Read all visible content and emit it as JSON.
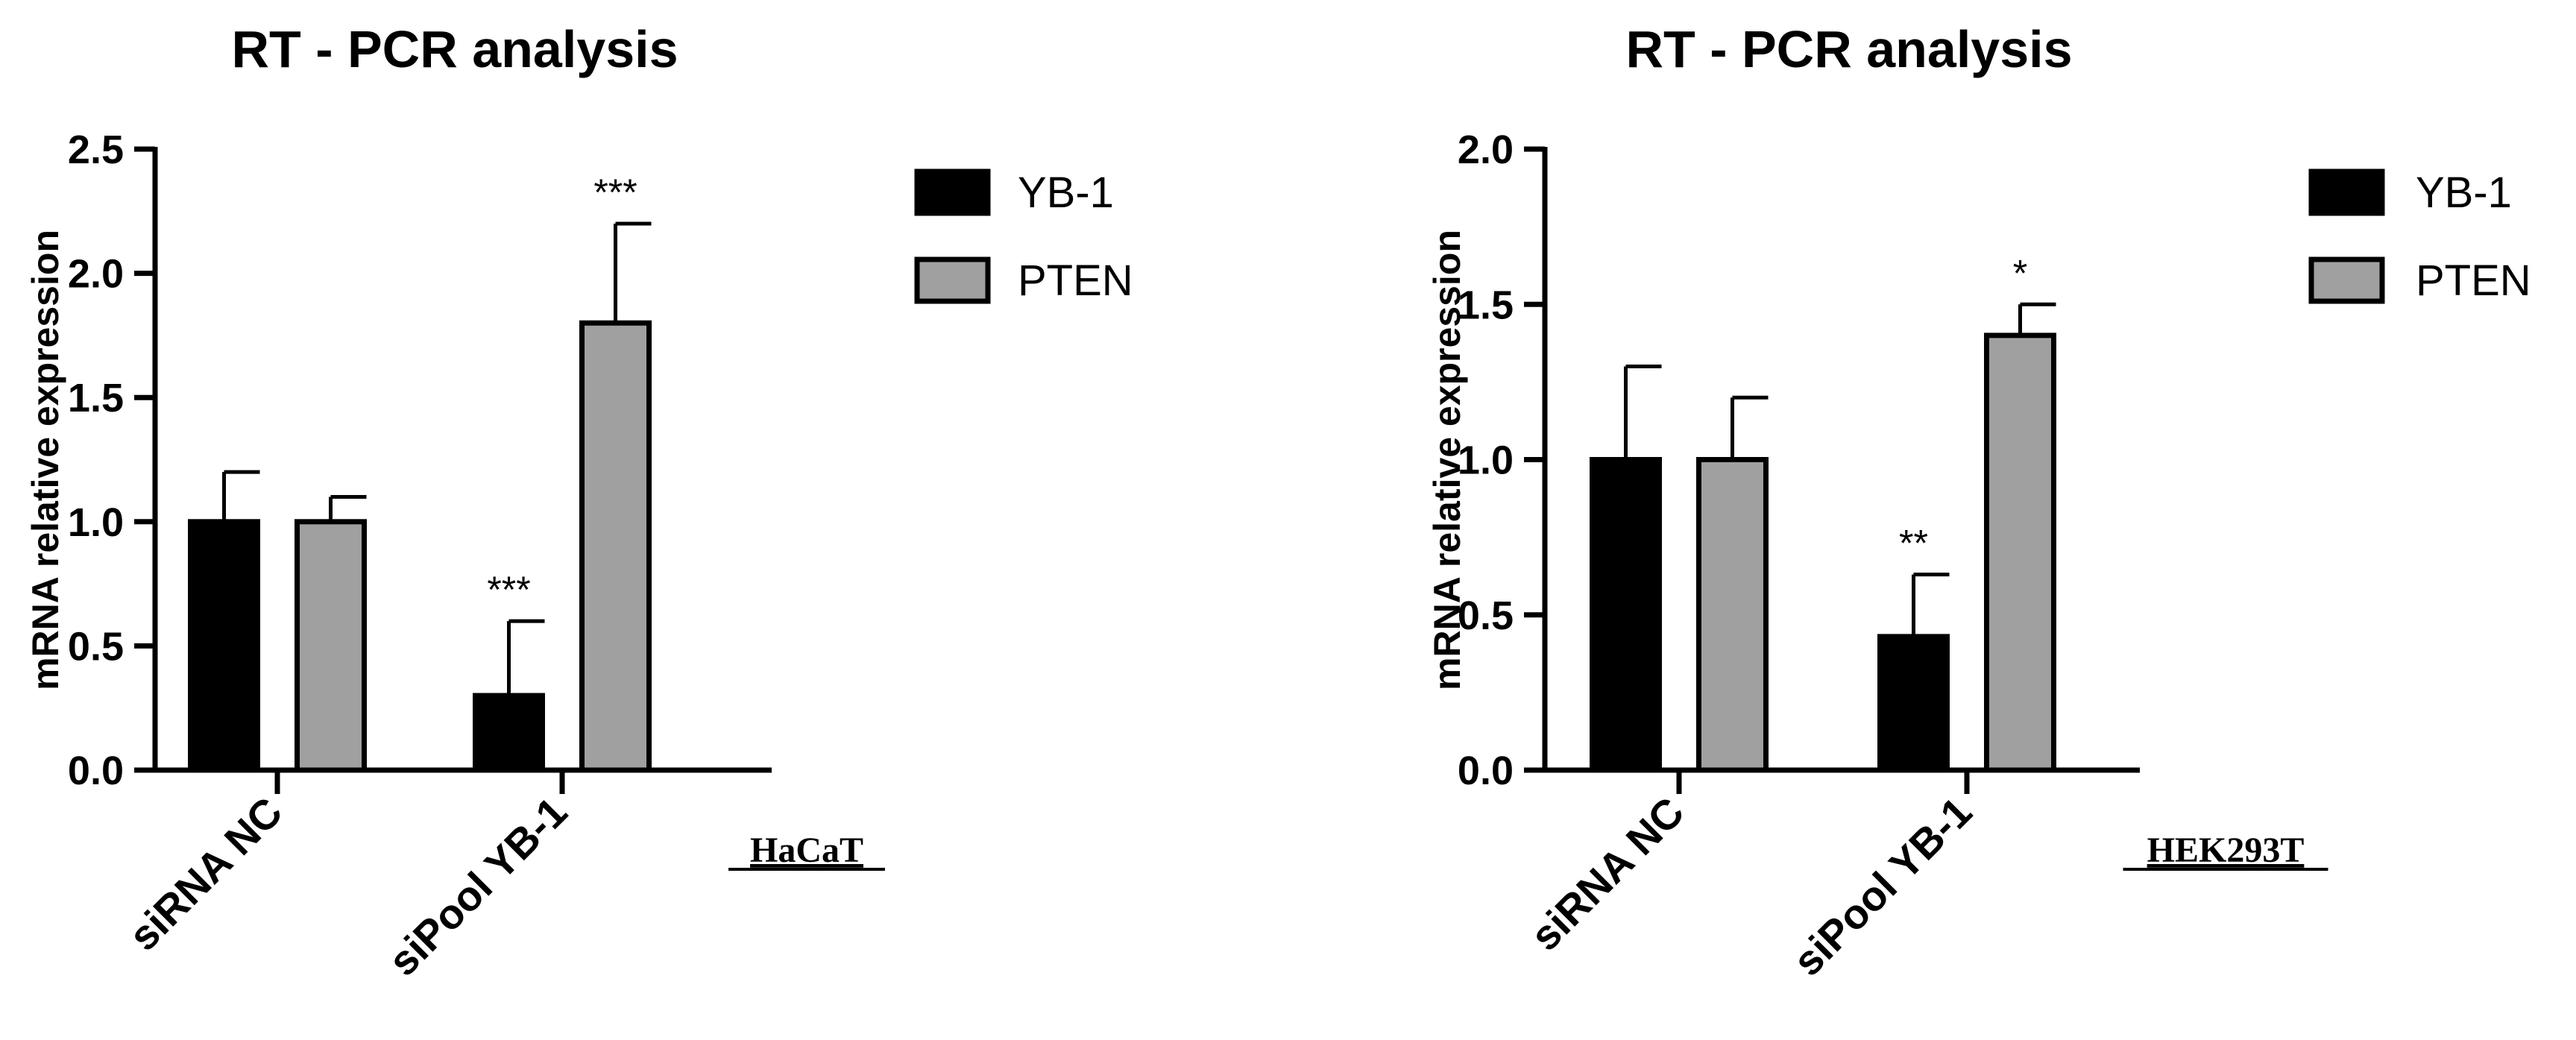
{
  "chart_data": [
    {
      "type": "bar",
      "title": "RT - PCR analysis",
      "ylabel": "mRNA relative expression",
      "xlabel": "",
      "ylim": [
        0,
        2.5
      ],
      "yticks": [
        "0.0",
        "0.5",
        "1.0",
        "1.5",
        "2.0",
        "2.5"
      ],
      "ytick_values": [
        0,
        0.5,
        1.0,
        1.5,
        2.0,
        2.5
      ],
      "categories": [
        "siRNA NC",
        "siPool YB-1"
      ],
      "series": [
        {
          "name": "YB-1",
          "color": "#000000",
          "values": [
            1.0,
            0.3
          ],
          "errors": [
            0.2,
            0.3
          ],
          "significance": [
            "",
            "***"
          ]
        },
        {
          "name": "PTEN",
          "color": "#a0a0a0",
          "values": [
            1.0,
            1.8
          ],
          "errors": [
            0.1,
            0.4
          ],
          "significance": [
            "",
            "***"
          ]
        }
      ],
      "legend": "top-right",
      "cell_line": "HaCaT",
      "grid": false
    },
    {
      "type": "bar",
      "title": "RT - PCR analysis",
      "ylabel": "mRNA relative expression",
      "xlabel": "",
      "ylim": [
        0,
        2.0
      ],
      "yticks": [
        "0.0",
        "0.5",
        "1.0",
        "1.5",
        "2.0"
      ],
      "ytick_values": [
        0,
        0.5,
        1.0,
        1.5,
        2.0
      ],
      "categories": [
        "siRNA NC",
        "siPool YB-1"
      ],
      "series": [
        {
          "name": "YB-1",
          "color": "#000000",
          "values": [
            1.0,
            0.43
          ],
          "errors": [
            0.3,
            0.2
          ],
          "significance": [
            "",
            "**"
          ]
        },
        {
          "name": "PTEN",
          "color": "#a0a0a0",
          "values": [
            1.0,
            1.4
          ],
          "errors": [
            0.2,
            0.1
          ],
          "significance": [
            "",
            "*"
          ]
        }
      ],
      "legend": "top-right",
      "cell_line": "HEK293T",
      "grid": false
    }
  ]
}
